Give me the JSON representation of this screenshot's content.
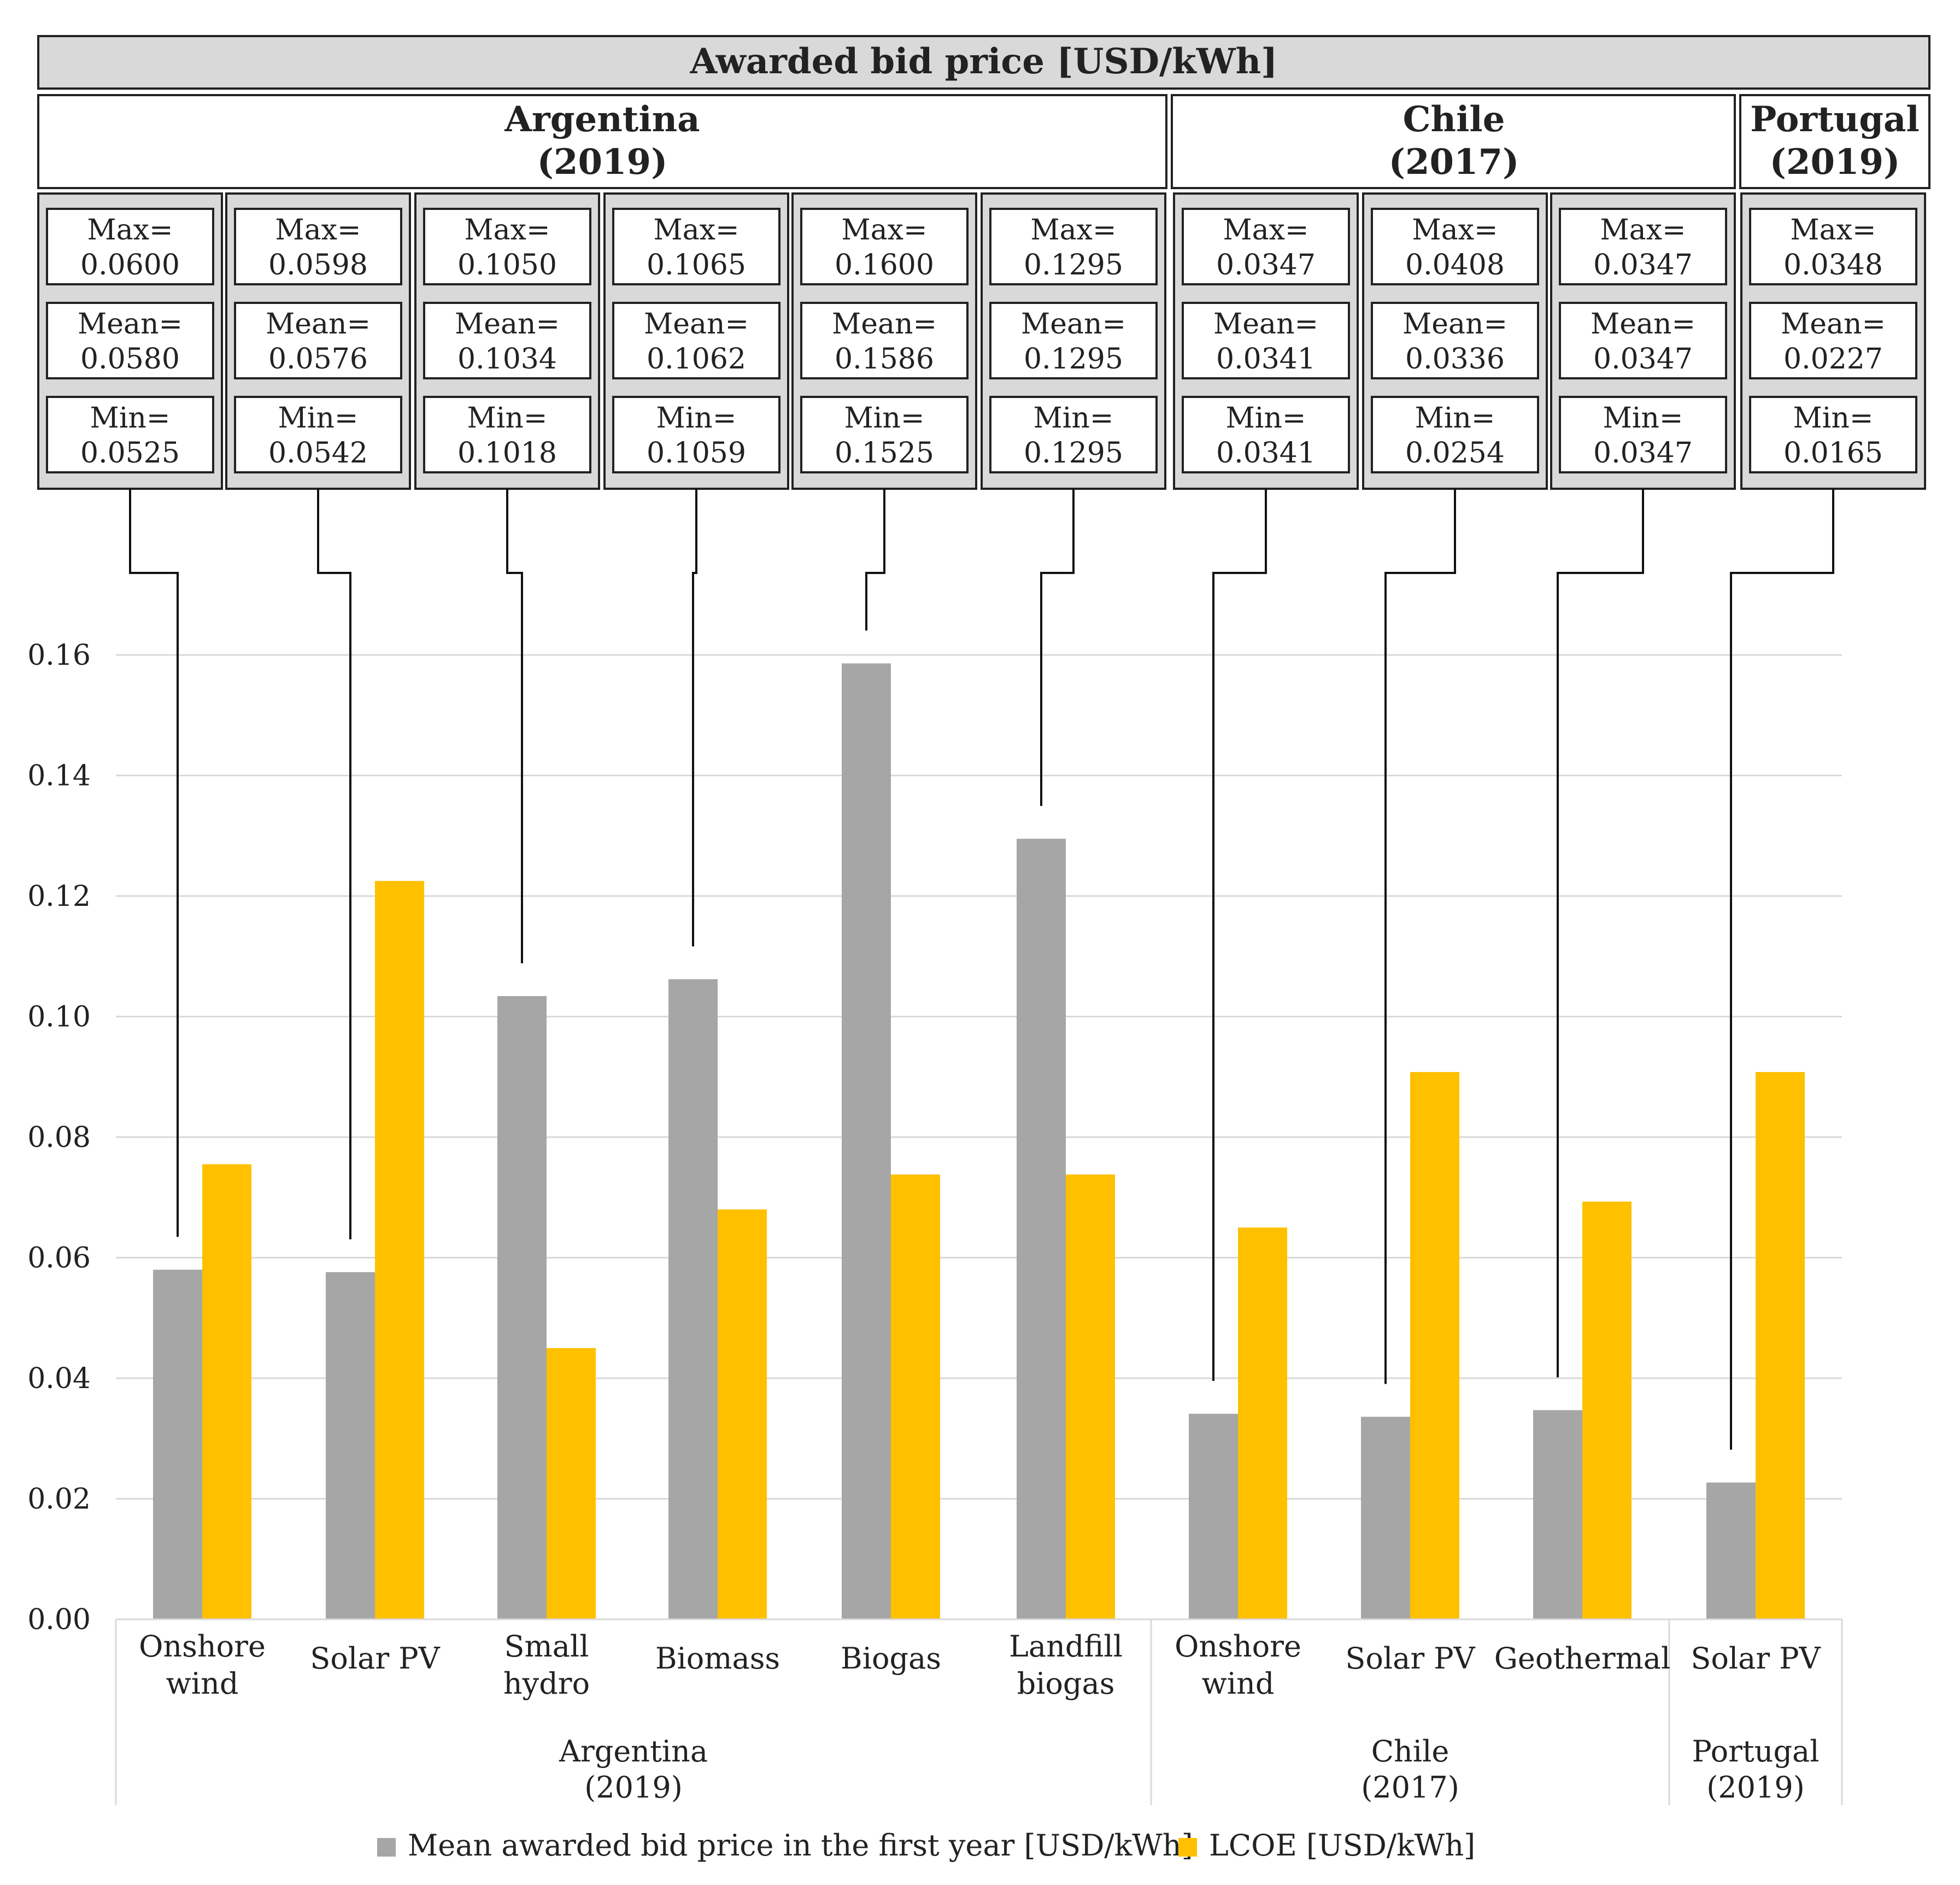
{
  "header": {
    "title": "Awarded bid price [USD/kWh]"
  },
  "countries": [
    {
      "name": "Argentina",
      "year": "(2019)"
    },
    {
      "name": "Chile",
      "year": "(2017)"
    },
    {
      "name": "Portugal",
      "year": "(2019)"
    }
  ],
  "stats": [
    {
      "max_label": "Max=",
      "max": "0.0600",
      "mean_label": "Mean=",
      "mean": "0.0580",
      "min_label": "Min=",
      "min": "0.0525"
    },
    {
      "max_label": "Max=",
      "max": "0.0598",
      "mean_label": "Mean=",
      "mean": "0.0576",
      "min_label": "Min=",
      "min": "0.0542"
    },
    {
      "max_label": "Max=",
      "max": "0.1050",
      "mean_label": "Mean=",
      "mean": "0.1034",
      "min_label": "Min=",
      "min": "0.1018"
    },
    {
      "max_label": "Max=",
      "max": "0.1065",
      "mean_label": "Mean=",
      "mean": "0.1062",
      "min_label": "Min=",
      "min": "0.1059"
    },
    {
      "max_label": "Max=",
      "max": "0.1600",
      "mean_label": "Mean=",
      "mean": "0.1586",
      "min_label": "Min=",
      "min": "0.1525"
    },
    {
      "max_label": "Max=",
      "max": "0.1295",
      "mean_label": "Mean=",
      "mean": "0.1295",
      "min_label": "Min=",
      "min": "0.1295"
    },
    {
      "max_label": "Max=",
      "max": "0.0347",
      "mean_label": "Mean=",
      "mean": "0.0341",
      "min_label": "Min=",
      "min": "0.0341"
    },
    {
      "max_label": "Max=",
      "max": "0.0408",
      "mean_label": "Mean=",
      "mean": "0.0336",
      "min_label": "Min=",
      "min": "0.0254"
    },
    {
      "max_label": "Max=",
      "max": "0.0347",
      "mean_label": "Mean=",
      "mean": "0.0347",
      "min_label": "Min=",
      "min": "0.0347"
    },
    {
      "max_label": "Max=",
      "max": "0.0348",
      "mean_label": "Mean=",
      "mean": "0.0227",
      "min_label": "Min=",
      "min": "0.0165"
    }
  ],
  "chart_data": {
    "type": "bar",
    "title": "Awarded bid price [USD/kWh]",
    "xlabel": "",
    "ylabel": "",
    "ylim": [
      0,
      0.16
    ],
    "yticks": [
      "0.00",
      "0.02",
      "0.04",
      "0.06",
      "0.08",
      "0.10",
      "0.12",
      "0.14",
      "0.16"
    ],
    "grid": true,
    "legend_position": "bottom",
    "categories": [
      [
        "Onshore",
        "wind"
      ],
      [
        "Solar PV"
      ],
      [
        "Small",
        "hydro"
      ],
      [
        "Biomass"
      ],
      [
        "Biogas"
      ],
      [
        "Landfill",
        "biogas"
      ],
      [
        "Onshore",
        "wind"
      ],
      [
        "Solar PV"
      ],
      [
        "Geothermal"
      ],
      [
        "Solar PV"
      ]
    ],
    "groups": [
      {
        "lines": [
          "Argentina",
          "(2019)"
        ],
        "start": 0,
        "end": 5
      },
      {
        "lines": [
          "Chile",
          "(2017)"
        ],
        "start": 6,
        "end": 8
      },
      {
        "lines": [
          "Portugal",
          "(2019)"
        ],
        "start": 9,
        "end": 9
      }
    ],
    "series": [
      {
        "name": "Mean awarded bid price in the first year [USD/kWh]",
        "color": "#A6A6A6",
        "values": [
          0.058,
          0.0576,
          0.1034,
          0.1062,
          0.1586,
          0.1295,
          0.0341,
          0.0336,
          0.0347,
          0.0227
        ]
      },
      {
        "name": "LCOE [USD/kWh]",
        "color": "#FFC000",
        "values": [
          0.0755,
          0.1225,
          0.045,
          0.068,
          0.0738,
          0.0738,
          0.065,
          0.0908,
          0.0693,
          0.0908
        ]
      }
    ]
  }
}
